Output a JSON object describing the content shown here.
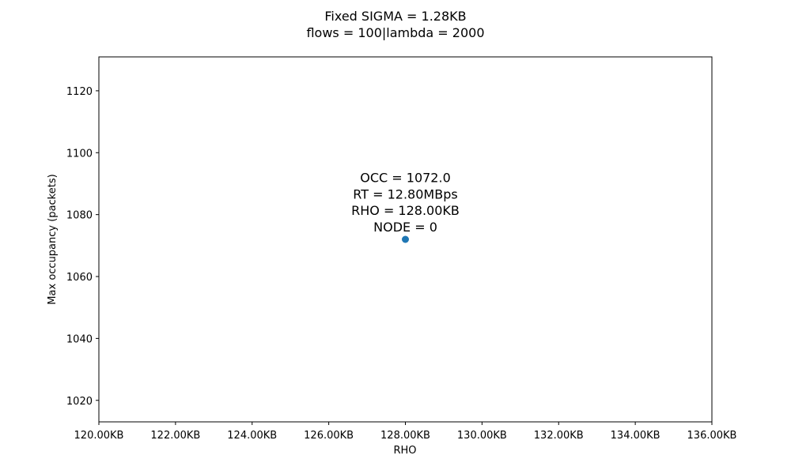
{
  "chart_data": {
    "type": "scatter",
    "title": "Fixed SIGMA = 1.28KB",
    "subtitle": "flows = 100|lambda = 2000",
    "xlabel": "RHO",
    "ylabel": "Max occupancy (packets)",
    "xlim": [
      120,
      136
    ],
    "ylim": [
      1013.05,
      1130.95
    ],
    "x_ticks": [
      120,
      122,
      124,
      126,
      128,
      130,
      132,
      134,
      136
    ],
    "x_tick_labels": [
      "120.00KB",
      "122.00KB",
      "124.00KB",
      "126.00KB",
      "128.00KB",
      "130.00KB",
      "132.00KB",
      "134.00KB",
      "136.00KB"
    ],
    "y_ticks": [
      1020,
      1040,
      1060,
      1080,
      1100,
      1120
    ],
    "y_tick_labels": [
      "1020",
      "1040",
      "1060",
      "1080",
      "1100",
      "1120"
    ],
    "grid": false,
    "series": [
      {
        "x": [
          128
        ],
        "y": [
          1072
        ],
        "color": "#1f77b4"
      }
    ],
    "annotations": [
      {
        "x": 128,
        "y": 1072,
        "lines": [
          "OCC = 1072.0",
          "RT = 12.80MBps",
          "RHO = 128.00KB",
          "NODE = 0"
        ]
      }
    ]
  }
}
